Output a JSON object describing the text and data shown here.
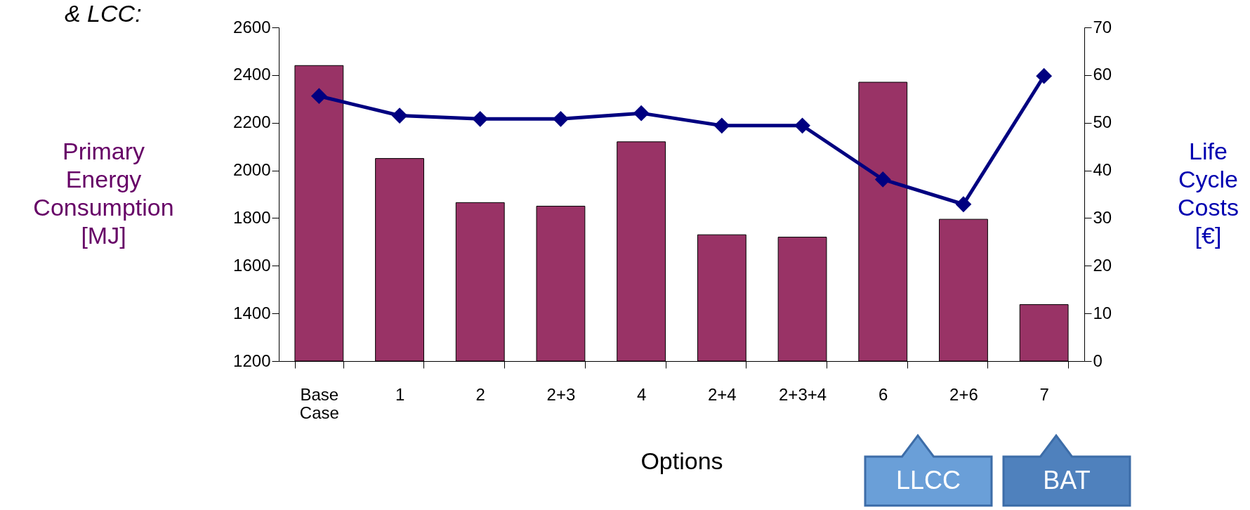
{
  "chart_data": {
    "type": "bar",
    "title": "& LCC:",
    "xlabel": "Options",
    "ylabel": "Primary Energy Consumption [MJ]",
    "y2label": "Life Cycle Costs [€]",
    "categories": [
      "Base Case",
      "1",
      "2",
      "2+3",
      "4",
      "2+4",
      "2+3+4",
      "6",
      "2+6",
      "7"
    ],
    "series": [
      {
        "color": "#993366",
        "values": [
          2440,
          2050,
          1865,
          1850,
          2120,
          1730,
          1720,
          2370,
          1795,
          1437
        ]
      },
      {
        "type": "line",
        "axis": "y2",
        "color": "#000080",
        "marker": "diamond",
        "values": [
          55.6,
          51.5,
          50.8,
          50.8,
          52,
          49.4,
          49.4,
          38.1,
          32.9,
          59.8
        ]
      }
    ],
    "ylim": [
      1200,
      2600
    ],
    "yticks": [
      1200,
      1400,
      1600,
      1800,
      2000,
      2200,
      2400,
      2600
    ],
    "y2lim": [
      0,
      70
    ],
    "y2ticks": [
      0,
      10,
      20,
      30,
      40,
      50,
      60,
      70
    ],
    "annotations": [
      "LLCC",
      "BAT"
    ]
  }
}
